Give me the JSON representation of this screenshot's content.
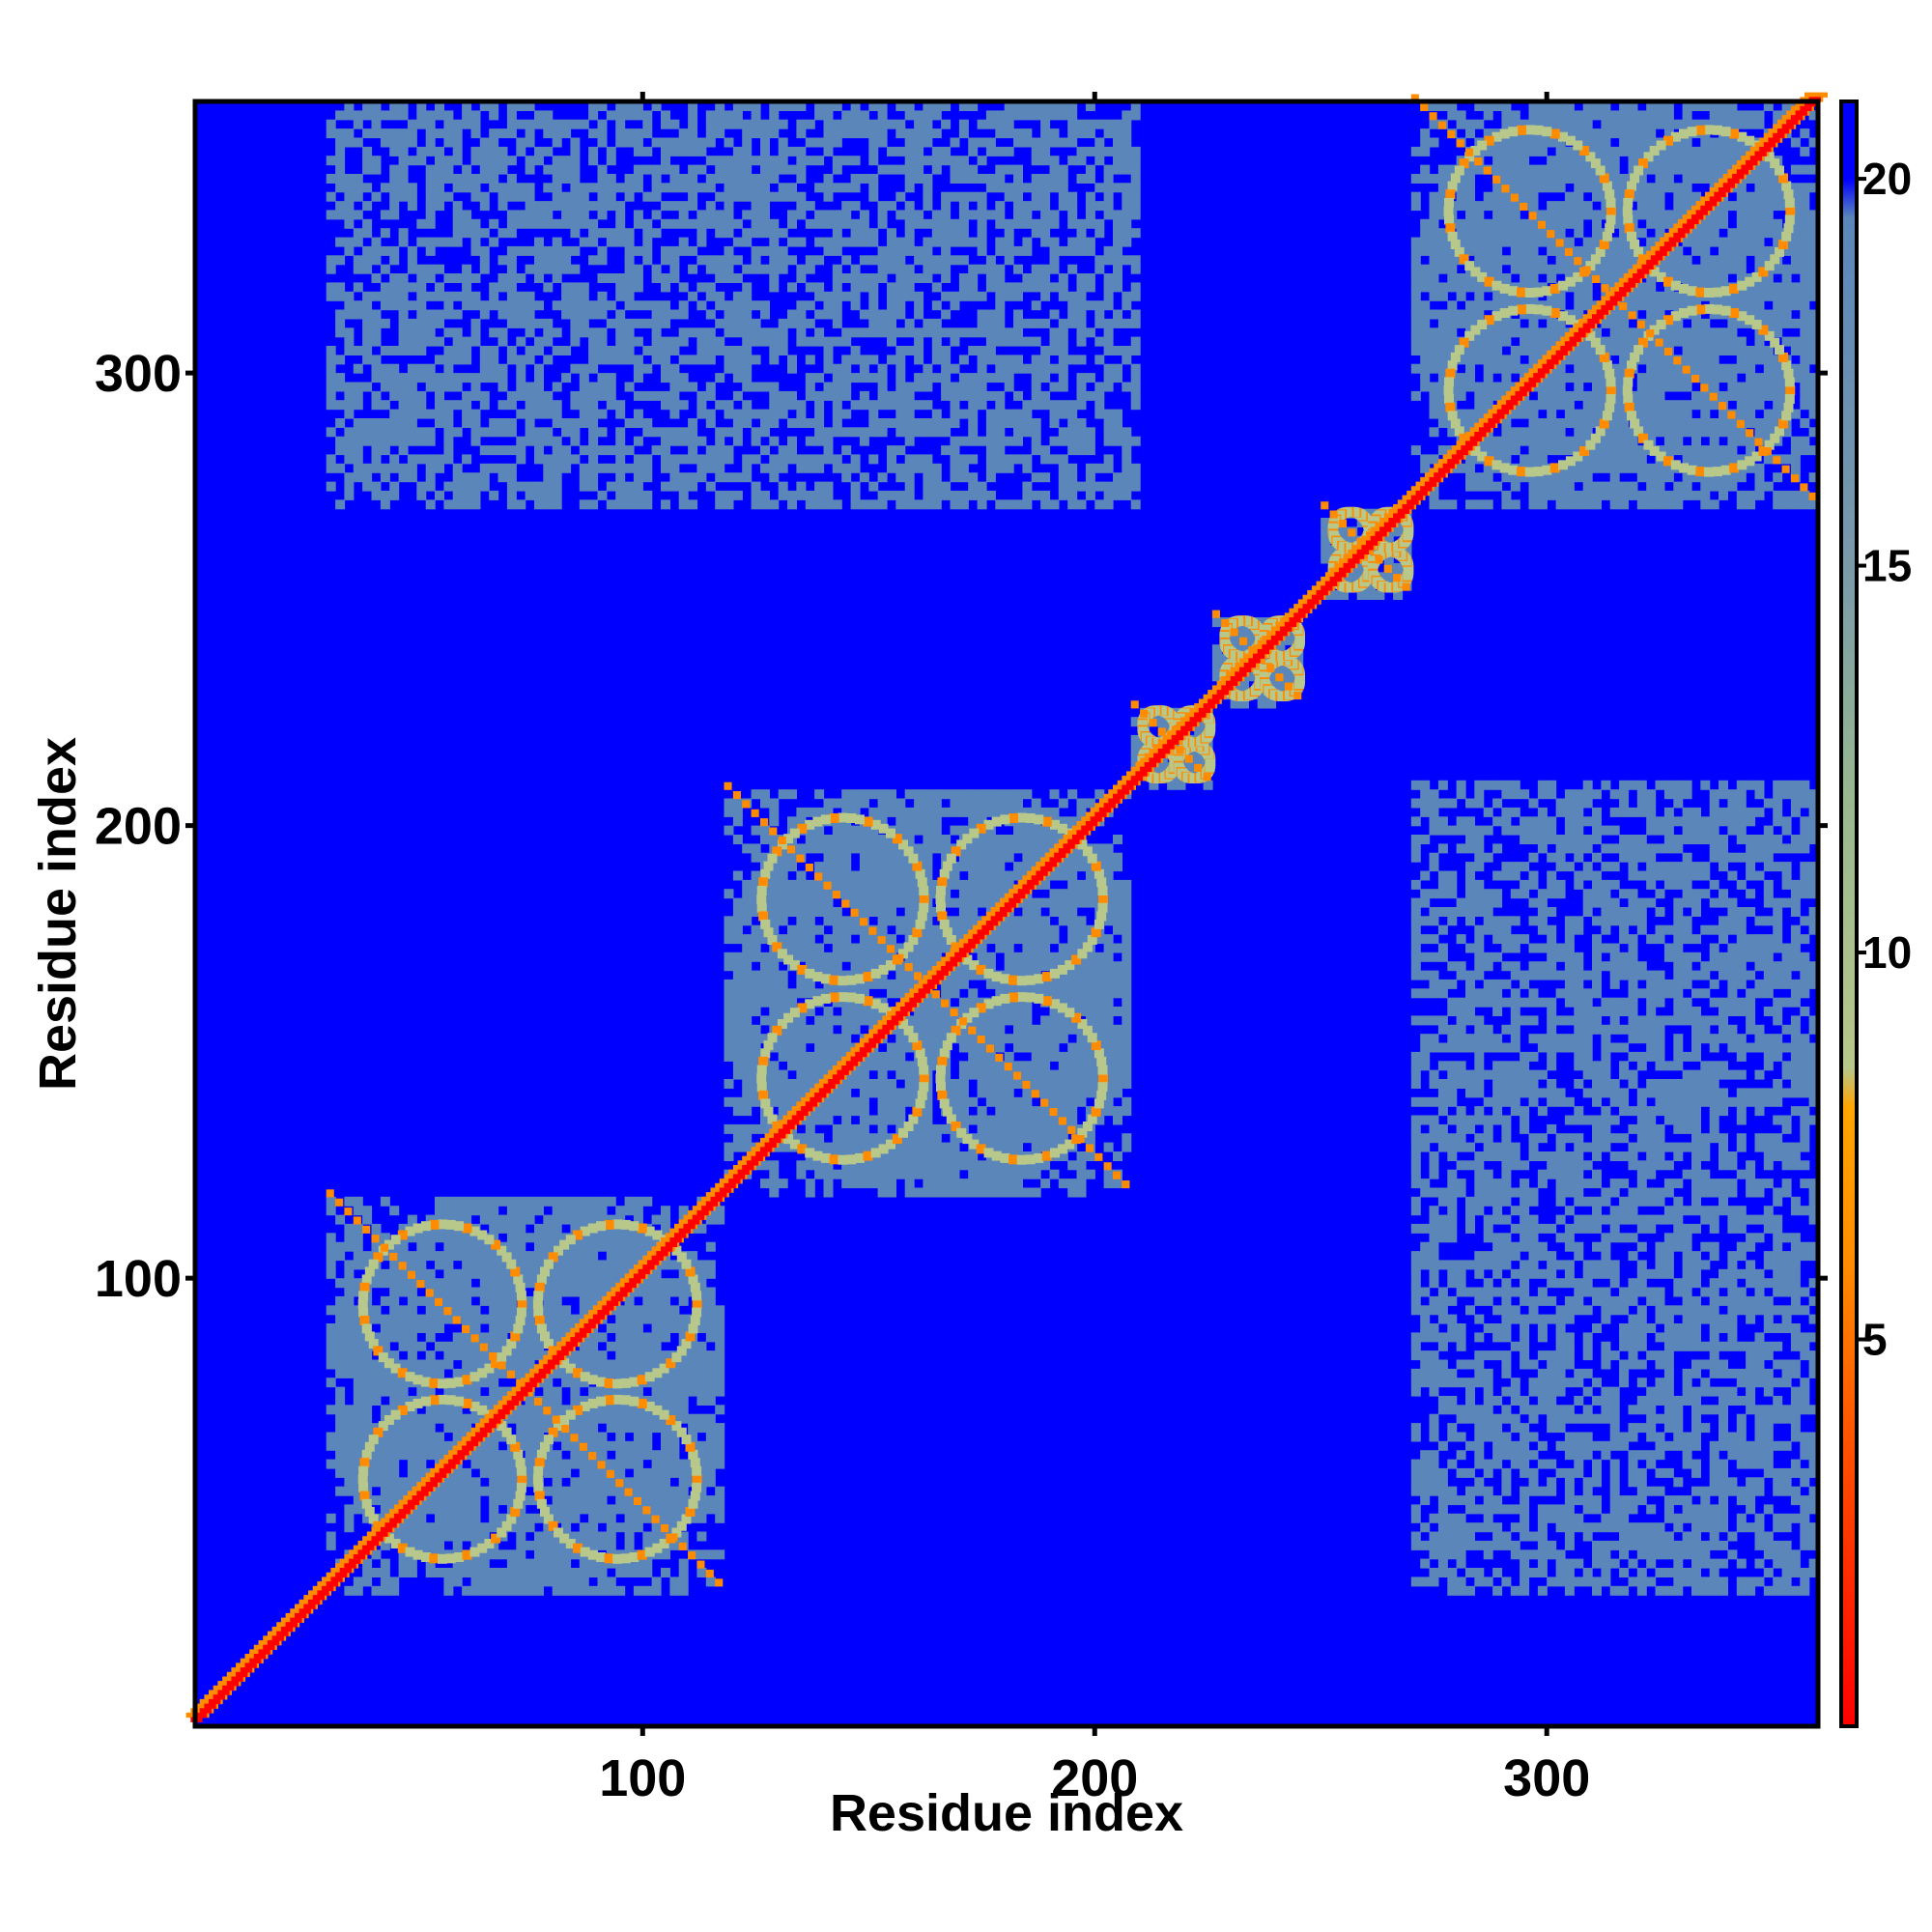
{
  "chart_data": {
    "type": "heatmap",
    "title": "",
    "xlabel": "Residue index",
    "ylabel": "Residue index",
    "xlim": [
      1,
      360
    ],
    "ylim": [
      1,
      360
    ],
    "x_ticks": [
      100,
      200,
      300
    ],
    "y_ticks": [
      100,
      200,
      300
    ],
    "colorbar": {
      "ticks": [
        5,
        10,
        15,
        20
      ],
      "range": [
        0,
        21
      ],
      "stops": [
        {
          "value": 0,
          "color": "#ff0000"
        },
        {
          "value": 4,
          "color": "#ff5a00"
        },
        {
          "value": 6,
          "color": "#ff8c00"
        },
        {
          "value": 8,
          "color": "#ffa500"
        },
        {
          "value": 8.5,
          "color": "#b8c78a"
        },
        {
          "value": 12,
          "color": "#98b890"
        },
        {
          "value": 15,
          "color": "#7a9aaa"
        },
        {
          "value": 19.5,
          "color": "#5a86ba"
        },
        {
          "value": 20,
          "color": "#0000ff"
        },
        {
          "value": 21,
          "color": "#0000ff"
        }
      ]
    },
    "colors": {
      "background": "#0000ff",
      "contact_far": "#5a86ba",
      "contact_mid": "#b8c78a",
      "contact_near": "#ff8c00",
      "diagonal": "#ff0000"
    },
    "domains": [
      {
        "start": 30,
        "end": 118
      },
      {
        "start": 118,
        "end": 208
      },
      {
        "start": 208,
        "end": 226
      },
      {
        "start": 226,
        "end": 246
      },
      {
        "start": 250,
        "end": 270
      },
      {
        "start": 270,
        "end": 360
      }
    ],
    "inter_domain_blocks": [
      {
        "x": [
          30,
          210
        ],
        "y": [
          270,
          360
        ]
      },
      {
        "x": [
          270,
          360
        ],
        "y": [
          30,
          210
        ]
      }
    ]
  }
}
